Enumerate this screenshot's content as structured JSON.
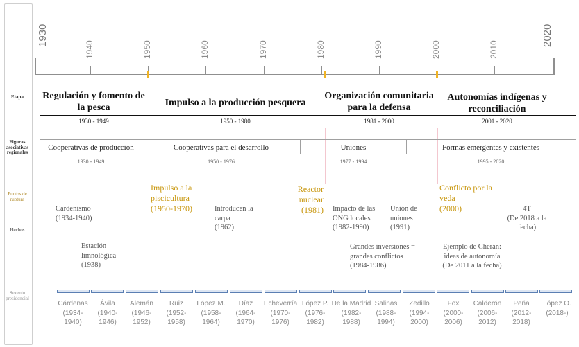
{
  "row_labels": {
    "etapa": "Etapa",
    "figuras": "Figuras asociativas regionales",
    "puntos": "Puntos de ruptura",
    "hechos": "Hechos",
    "sexenio": "Sexenio presidencial"
  },
  "years": [
    "1930",
    "1940",
    "1950",
    "1960",
    "1970",
    "1980",
    "1990",
    "2000",
    "2010",
    "2020"
  ],
  "stages": [
    {
      "title": "Regulación y fomento de la pesca",
      "range": "1930 - 1949"
    },
    {
      "title": "Impulso a la producción pesquera",
      "range": "1950 - 1980"
    },
    {
      "title": "Organización comunitaria para la defensa",
      "range": "1981 - 2000"
    },
    {
      "title": "Autonomías indígenas y reconciliación",
      "range": "2001 - 2020"
    }
  ],
  "associations": [
    {
      "label": "Cooperativas de producción",
      "range": "1930 - 1949"
    },
    {
      "label": "Cooperativas para el desarrollo",
      "range": "1950 - 1976"
    },
    {
      "label": "Uniones",
      "range": "1977 - 1994"
    },
    {
      "label": "Formas emergentes y existentes",
      "range": "1995 - 2020"
    }
  ],
  "breakpoints": [
    {
      "title": "Impulso a la piscicultura",
      "years": "(1950-1970)"
    },
    {
      "title": "Reactor nuclear",
      "years": "(1981)"
    },
    {
      "title": "Conflicto por la veda",
      "years": "(2000)"
    }
  ],
  "facts": [
    {
      "title": "Cardenismo",
      "years": "(1934-1940)"
    },
    {
      "title": "Estación limnológica",
      "years": "(1938)"
    },
    {
      "title": "Introducen la carpa",
      "years": "(1962)"
    },
    {
      "title": "Impacto de las ONG locales",
      "years": "(1982-1990)"
    },
    {
      "title": "Unión de uniones",
      "years": "(1991)"
    },
    {
      "title": "Grandes inversiones = grandes conflictos",
      "years": "(1984-1986)"
    },
    {
      "title": "Ejemplo de Cherán: ideas de autonomía",
      "years": "(De 2011 a la fecha)"
    },
    {
      "title": "4T",
      "years": "(De 2018 a la fecha)"
    }
  ],
  "presidents": [
    {
      "name": "Cárdenas",
      "years": "(1934-",
      "years2": "1940)"
    },
    {
      "name": "Ávila",
      "years": "(1940-",
      "years2": "1946)"
    },
    {
      "name": "Alemán",
      "years": "(1946-",
      "years2": "1952)"
    },
    {
      "name": "Ruiz",
      "years": "(1952-",
      "years2": "1958)"
    },
    {
      "name": "López M.",
      "years": "(1958-",
      "years2": "1964)"
    },
    {
      "name": "Díaz",
      "years": "(1964-",
      "years2": "1970)"
    },
    {
      "name": "Echeverría",
      "years": "(1970-",
      "years2": "1976)"
    },
    {
      "name": "López P.",
      "years": "(1976-",
      "years2": "1982)"
    },
    {
      "name": "De la Madrid",
      "years": "(1982-",
      "years2": "1988)"
    },
    {
      "name": "Salinas",
      "years": "(1988-",
      "years2": "1994)"
    },
    {
      "name": "Zedillo",
      "years": "(1994-",
      "years2": "2000)"
    },
    {
      "name": "Fox",
      "years": "(2000-",
      "years2": "2006)"
    },
    {
      "name": "Calderón",
      "years": "(2006-",
      "years2": "2012)"
    },
    {
      "name": "Peña",
      "years": "(2012-",
      "years2": "2018)"
    },
    {
      "name": "López O.",
      "years": "(2018-)",
      "years2": ""
    }
  ]
}
